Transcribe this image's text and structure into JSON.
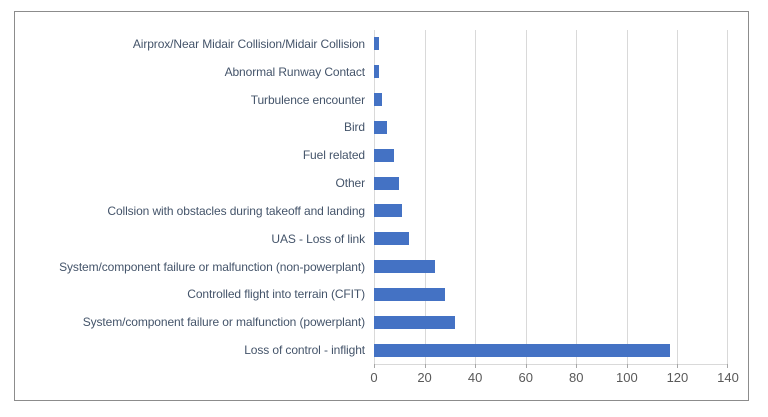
{
  "window": {
    "background": "#ffffff",
    "frame_border_color": "#8C8C8C",
    "frame_background": "#ffffff"
  },
  "chart_data": {
    "type": "bar",
    "orientation": "horizontal",
    "title": "",
    "xlabel": "",
    "ylabel": "",
    "categories": [
      "Airprox/Near Midair Collision/Midair Collision",
      "Abnormal Runway Contact",
      "Turbulence encounter",
      "Bird",
      "Fuel related",
      "Other",
      "Collsion with obstacles during takeoff and landing",
      "UAS - Loss of link",
      "System/component failure or malfunction (non-powerplant)",
      "Controlled flight into terrain (CFIT)",
      "System/component failure or malfunction (powerplant)",
      "Loss of control - inflight"
    ],
    "values": [
      2,
      2,
      3,
      5,
      8,
      10,
      11,
      14,
      24,
      28,
      32,
      117
    ],
    "xlim": [
      0,
      140
    ],
    "x_ticks": [
      0,
      20,
      40,
      60,
      80,
      100,
      120,
      140
    ],
    "grid": true,
    "legend": false,
    "colors": {
      "bar": "#4472C4",
      "gridline": "#D9D9D9",
      "axis_line": "#D9D9D9",
      "tick_mark": "#A6A6A6",
      "x_tick_label": "#595959",
      "category_label": "#44546A"
    }
  }
}
